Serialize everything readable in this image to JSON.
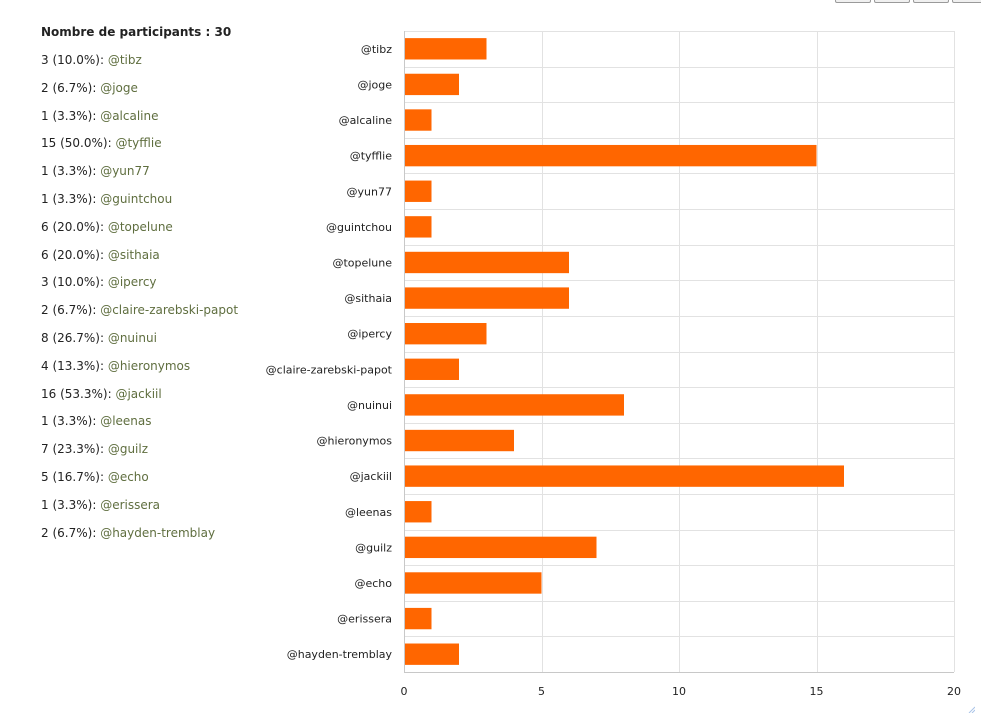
{
  "summary": {
    "title_label": "Nombre de participants : ",
    "total": "30",
    "items": [
      {
        "count": "3",
        "pct": "(10.0%):",
        "user": "@tibz"
      },
      {
        "count": "2",
        "pct": "(6.7%):",
        "user": "@joge"
      },
      {
        "count": "1",
        "pct": "(3.3%):",
        "user": "@alcaline"
      },
      {
        "count": "15",
        "pct": "(50.0%):",
        "user": "@tyfflie"
      },
      {
        "count": "1",
        "pct": "(3.3%):",
        "user": "@yun77"
      },
      {
        "count": "1",
        "pct": "(3.3%):",
        "user": "@guintchou"
      },
      {
        "count": "6",
        "pct": "(20.0%):",
        "user": "@topelune"
      },
      {
        "count": "6",
        "pct": "(20.0%):",
        "user": "@sithaia"
      },
      {
        "count": "3",
        "pct": "(10.0%):",
        "user": "@ipercy"
      },
      {
        "count": "2",
        "pct": "(6.7%):",
        "user": "@claire-zarebski-papot"
      },
      {
        "count": "8",
        "pct": "(26.7%):",
        "user": "@nuinui"
      },
      {
        "count": "4",
        "pct": "(13.3%):",
        "user": "@hieronymos"
      },
      {
        "count": "16",
        "pct": "(53.3%):",
        "user": "@jackiil"
      },
      {
        "count": "1",
        "pct": "(3.3%):",
        "user": "@leenas"
      },
      {
        "count": "7",
        "pct": "(23.3%):",
        "user": "@guilz"
      },
      {
        "count": "5",
        "pct": "(16.7%):",
        "user": "@echo"
      },
      {
        "count": "1",
        "pct": "(3.3%):",
        "user": "@erissera"
      },
      {
        "count": "2",
        "pct": "(6.7%):",
        "user": "@hayden-tremblay"
      }
    ]
  },
  "chart_data": {
    "type": "bar",
    "orientation": "horizontal",
    "categories": [
      "@tibz",
      "@joge",
      "@alcaline",
      "@tyfflie",
      "@yun77",
      "@guintchou",
      "@topelune",
      "@sithaia",
      "@ipercy",
      "@claire-zarebski-papot",
      "@nuinui",
      "@hieronymos",
      "@jackiil",
      "@leenas",
      "@guilz",
      "@echo",
      "@erissera",
      "@hayden-tremblay"
    ],
    "values": [
      3,
      2,
      1,
      15,
      1,
      1,
      6,
      6,
      3,
      2,
      8,
      4,
      16,
      1,
      7,
      5,
      1,
      2
    ],
    "xlim": [
      0,
      20
    ],
    "xticks": [
      "0",
      "5",
      "10",
      "15",
      "20"
    ],
    "xtick_values": [
      0,
      5,
      10,
      15,
      20
    ],
    "title": "",
    "xlabel": "",
    "ylabel": "",
    "grid": true,
    "bar_color": "#ff6600"
  }
}
